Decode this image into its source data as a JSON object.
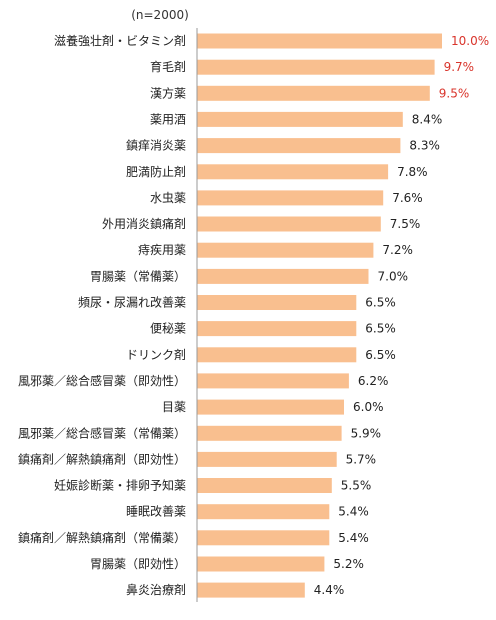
{
  "chart_data": {
    "type": "bar",
    "orientation": "horizontal",
    "note": "(n=2000)",
    "title": "",
    "xlabel": "",
    "ylabel": "",
    "xlim": [
      0,
      10.5
    ],
    "grid": false,
    "legend": "none",
    "unit": "%",
    "categories": [
      "滋養強壮剤・ビタミン剤",
      "育毛剤",
      "漢方薬",
      "薬用酒",
      "鎮痒消炎薬",
      "肥満防止剤",
      "水虫薬",
      "外用消炎鎮痛剤",
      "痔疾用薬",
      "胃腸薬（常備薬）",
      "頻尿・尿漏れ改善薬",
      "便秘薬",
      "ドリンク剤",
      "風邪薬／総合感冒薬（即効性）",
      "目薬",
      "風邪薬／総合感冒薬（常備薬）",
      "鎮痛剤／解熱鎮痛剤（即効性）",
      "妊娠診断薬・排卵予知薬",
      "睡眠改善薬",
      "鎮痛剤／解熱鎮痛剤（常備薬）",
      "胃腸薬（即効性）",
      "鼻炎治療剤"
    ],
    "values": [
      10.0,
      9.7,
      9.5,
      8.4,
      8.3,
      7.8,
      7.6,
      7.5,
      7.2,
      7.0,
      6.5,
      6.5,
      6.5,
      6.2,
      6.0,
      5.9,
      5.7,
      5.5,
      5.4,
      5.4,
      5.2,
      4.4
    ],
    "value_labels": [
      "10.0%",
      "9.7%",
      "9.5%",
      "8.4%",
      "8.3%",
      "7.8%",
      "7.6%",
      "7.5%",
      "7.2%",
      "7.0%",
      "6.5%",
      "6.5%",
      "6.5%",
      "6.2%",
      "6.0%",
      "5.9%",
      "5.7%",
      "5.5%",
      "5.4%",
      "5.4%",
      "5.2%",
      "4.4%"
    ],
    "highlight_count": 3,
    "colors": {
      "bar": "#F9BF8F",
      "axis": "#999999",
      "label": "#222222",
      "value": "#222222",
      "highlight_value": "#D9342B"
    }
  }
}
